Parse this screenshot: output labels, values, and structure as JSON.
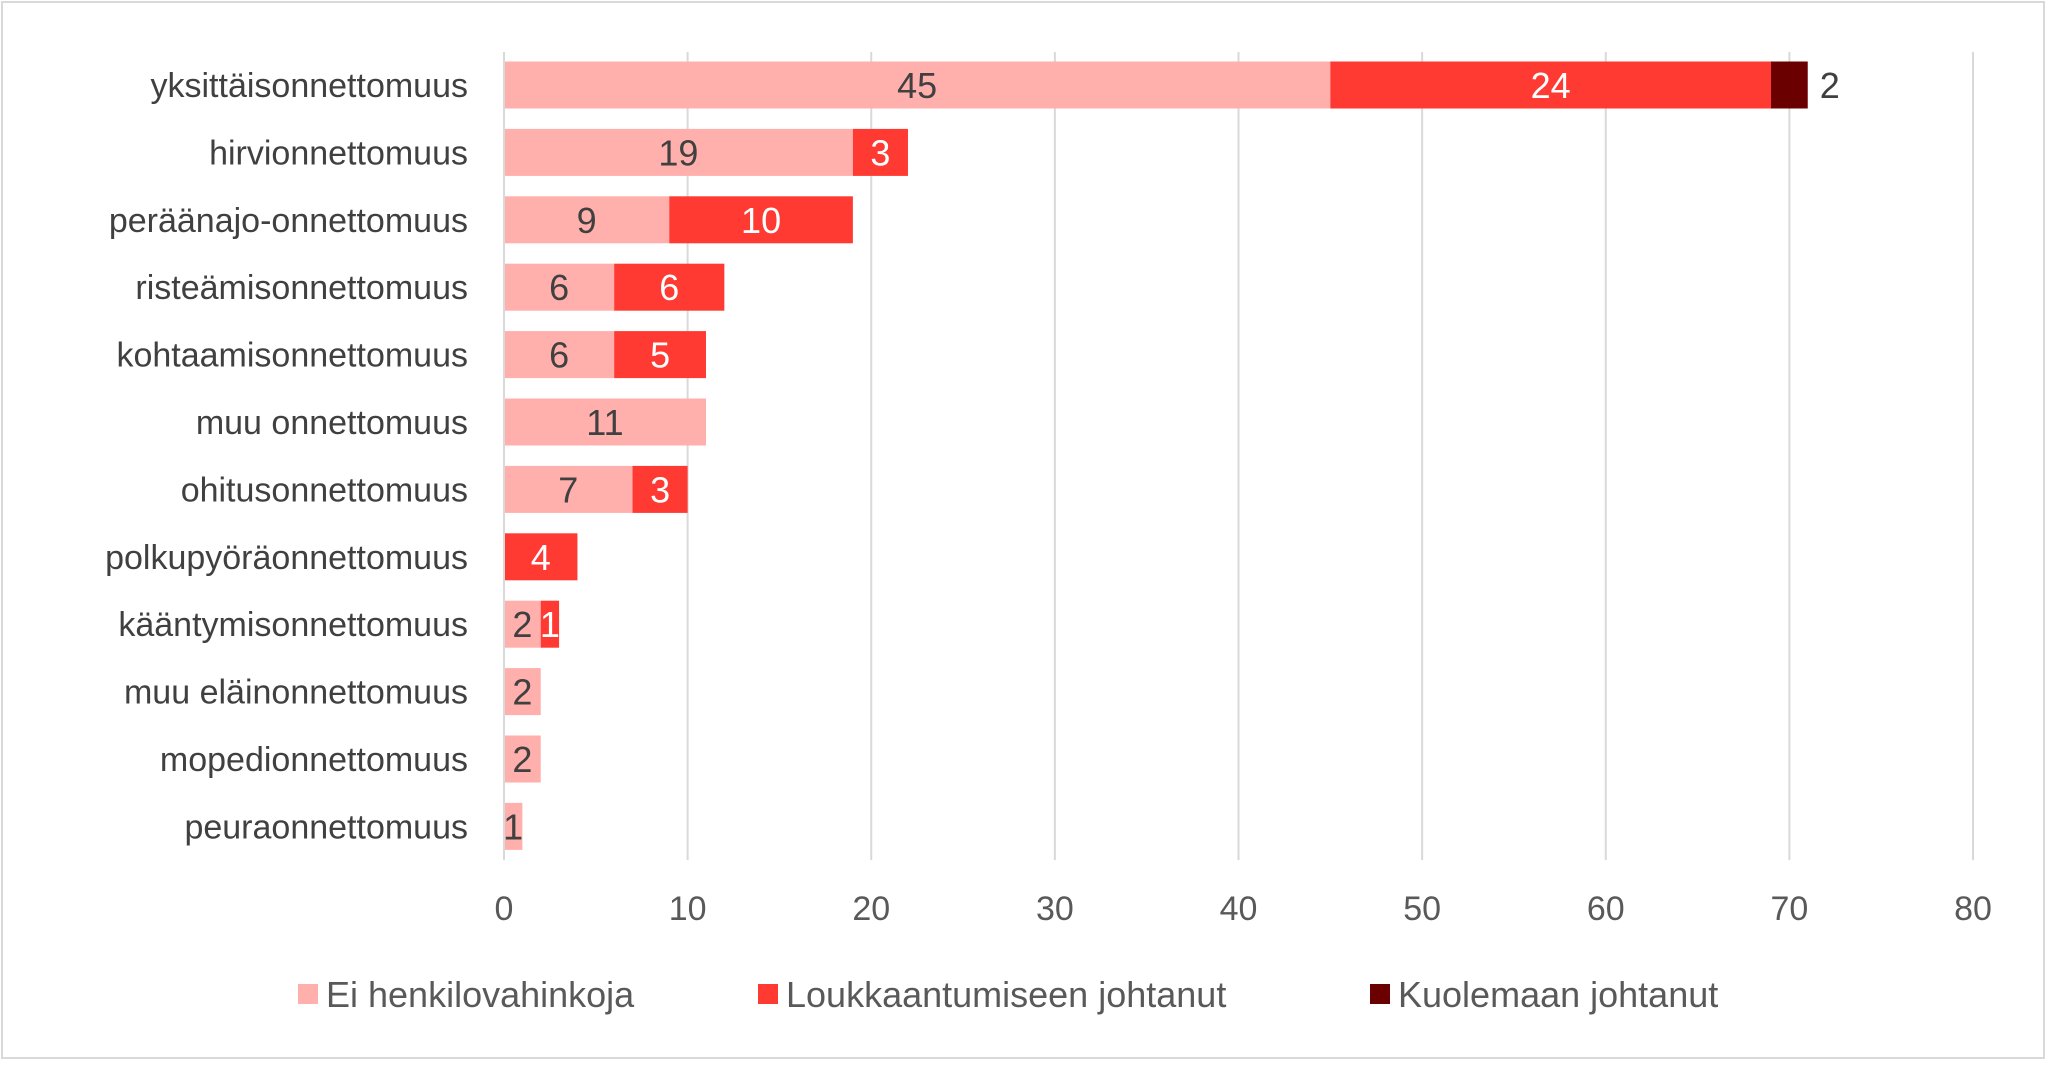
{
  "chart_data": {
    "type": "bar",
    "orientation": "horizontal",
    "stacked": true,
    "categories": [
      "yksittäisonnettomuus",
      "hirvionnettomuus",
      "peräänajo-onnettomuus",
      "risteämisonnettomuus",
      "kohtaamisonnettomuus",
      "muu onnettomuus",
      "ohitusonnettomuus",
      "polkupyöräonnettomuus",
      "kääntymisonnettomuus",
      "muu eläinonnettomuus",
      "mopedionnettomuus",
      "peuraonnettomuus"
    ],
    "series": [
      {
        "name": "Ei henkilovahinkoja",
        "color": "#FFAFAC",
        "label_color": "#404040",
        "values": [
          45,
          19,
          9,
          6,
          6,
          11,
          7,
          0,
          2,
          2,
          2,
          1
        ]
      },
      {
        "name": "Loukkaantumiseen johtanut",
        "color": "#FF3A32",
        "label_color": "#ffffff",
        "values": [
          24,
          3,
          10,
          6,
          5,
          0,
          3,
          4,
          1,
          0,
          0,
          0
        ]
      },
      {
        "name": "Kuolemaan johtanut",
        "color": "#6B0000",
        "label_color": "#404040",
        "values": [
          2,
          0,
          0,
          0,
          0,
          0,
          0,
          0,
          0,
          0,
          0,
          0
        ]
      }
    ],
    "xlim": [
      0,
      80
    ],
    "xticks": [
      0,
      10,
      20,
      30,
      40,
      50,
      60,
      70,
      80
    ],
    "grid": "vertical",
    "legend": "bottom",
    "title": "",
    "xlabel": "",
    "ylabel": ""
  }
}
